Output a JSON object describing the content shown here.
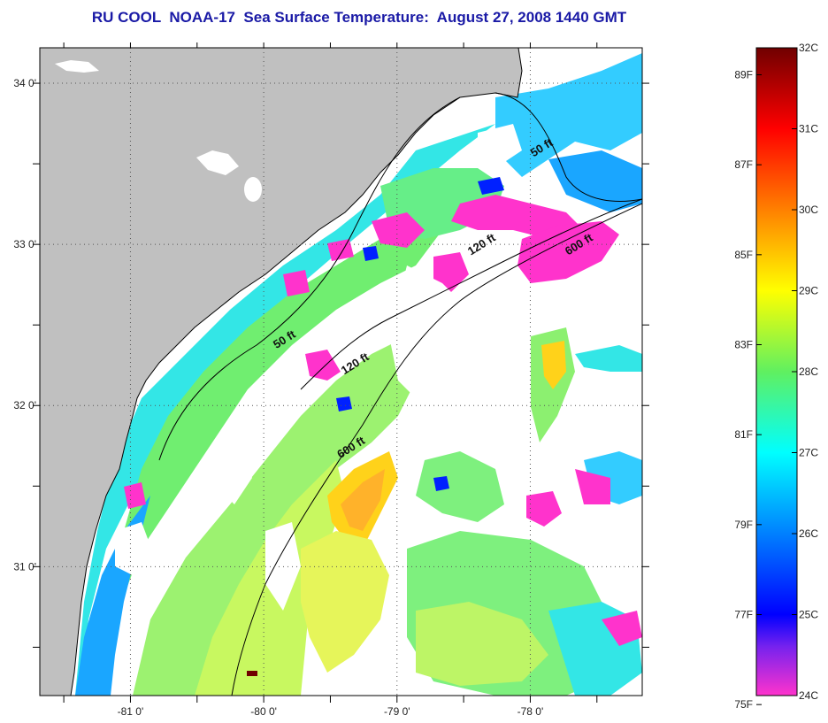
{
  "title": "RU COOL  NOAA-17  Sea Surface Temperature:  August 27, 2008 1440 GMT",
  "map": {
    "x_ticks": [
      {
        "lon": -81,
        "label": "-81 0'"
      },
      {
        "lon": -80,
        "label": "-80 0'"
      },
      {
        "lon": -79,
        "label": "-79 0'"
      },
      {
        "lon": -78,
        "label": "-78 0'"
      }
    ],
    "y_ticks": [
      {
        "lat": 34,
        "label": "34 0'"
      },
      {
        "lat": 33,
        "label": "33 0'"
      },
      {
        "lat": 32,
        "label": "32 0'"
      },
      {
        "lat": 31,
        "label": "31 0'"
      }
    ],
    "lon_range": [
      -81.68,
      -77.16
    ],
    "lat_range": [
      30.2,
      34.22
    ],
    "land_color": "#c0c0c0",
    "gridlines": "dotted",
    "isobath_labels": [
      {
        "text": "50 ft",
        "lon": -77.9,
        "lat": 33.58
      },
      {
        "text": "120 ft",
        "lon": -78.35,
        "lat": 32.98
      },
      {
        "text": "600 ft",
        "lon": -77.62,
        "lat": 32.98
      },
      {
        "text": "50 ft",
        "lon": -79.83,
        "lat": 32.39
      },
      {
        "text": "120 ft",
        "lon": -79.3,
        "lat": 32.24
      },
      {
        "text": "600 ft",
        "lon": -79.33,
        "lat": 31.72
      }
    ]
  },
  "colorbar": {
    "min_c": 24,
    "max_c": 32,
    "celsius_labels": [
      {
        "value": 32,
        "text": "32C"
      },
      {
        "value": 31,
        "text": "31C"
      },
      {
        "value": 30,
        "text": "30C"
      },
      {
        "value": 29,
        "text": "29C"
      },
      {
        "value": 28,
        "text": "28C"
      },
      {
        "value": 27,
        "text": "27C"
      },
      {
        "value": 26,
        "text": "26C"
      },
      {
        "value": 25,
        "text": "25C"
      },
      {
        "value": 24,
        "text": "24C"
      }
    ],
    "fahrenheit_labels": [
      {
        "value": 89,
        "text": "89F"
      },
      {
        "value": 87,
        "text": "87F"
      },
      {
        "value": 85,
        "text": "85F"
      },
      {
        "value": 83,
        "text": "83F"
      },
      {
        "value": 81,
        "text": "81F"
      },
      {
        "value": 79,
        "text": "79F"
      },
      {
        "value": 77,
        "text": "77F"
      },
      {
        "value": 75,
        "text": "75F"
      }
    ],
    "stops": [
      {
        "c": 24.0,
        "color": "#ff33cc"
      },
      {
        "c": 24.6,
        "color": "#7722ee"
      },
      {
        "c": 25.0,
        "color": "#0000ff"
      },
      {
        "c": 26.0,
        "color": "#0080ff"
      },
      {
        "c": 27.0,
        "color": "#00ffff"
      },
      {
        "c": 28.0,
        "color": "#60f060"
      },
      {
        "c": 29.0,
        "color": "#ffff00"
      },
      {
        "c": 30.0,
        "color": "#ff8000"
      },
      {
        "c": 31.0,
        "color": "#ff0000"
      },
      {
        "c": 32.0,
        "color": "#700000"
      }
    ]
  }
}
